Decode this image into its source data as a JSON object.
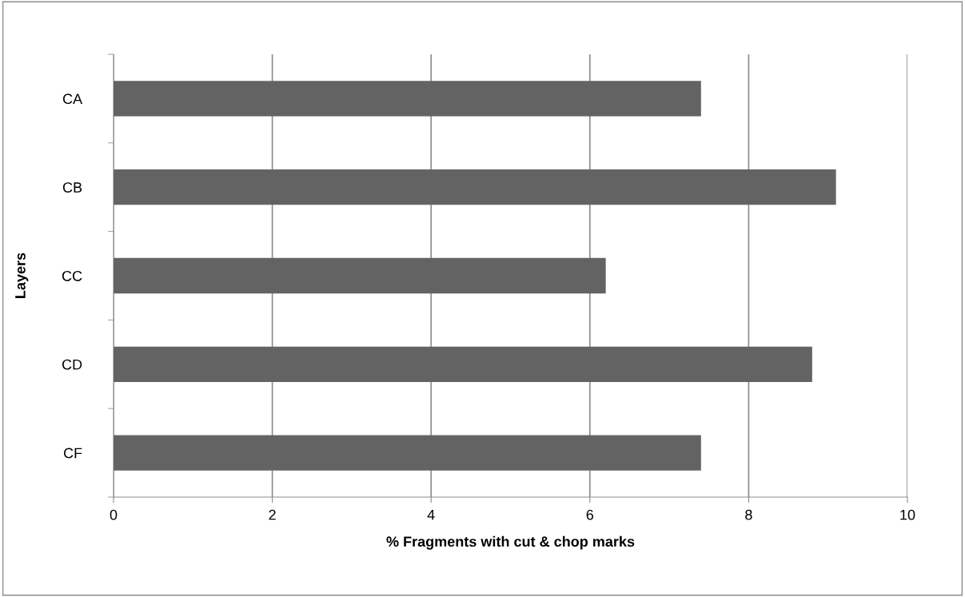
{
  "chart_data": {
    "type": "bar",
    "orientation": "horizontal",
    "categories": [
      "CA",
      "CB",
      "CC",
      "CD",
      "CF"
    ],
    "values": [
      7.4,
      9.1,
      6.2,
      8.8,
      7.4
    ],
    "color": "#636363",
    "xlabel": "% Fragments with cut & chop marks",
    "ylabel": "Layers",
    "xlim": [
      0,
      10
    ],
    "xticks": [
      0,
      2,
      4,
      6,
      8,
      10
    ],
    "grid": "x"
  }
}
